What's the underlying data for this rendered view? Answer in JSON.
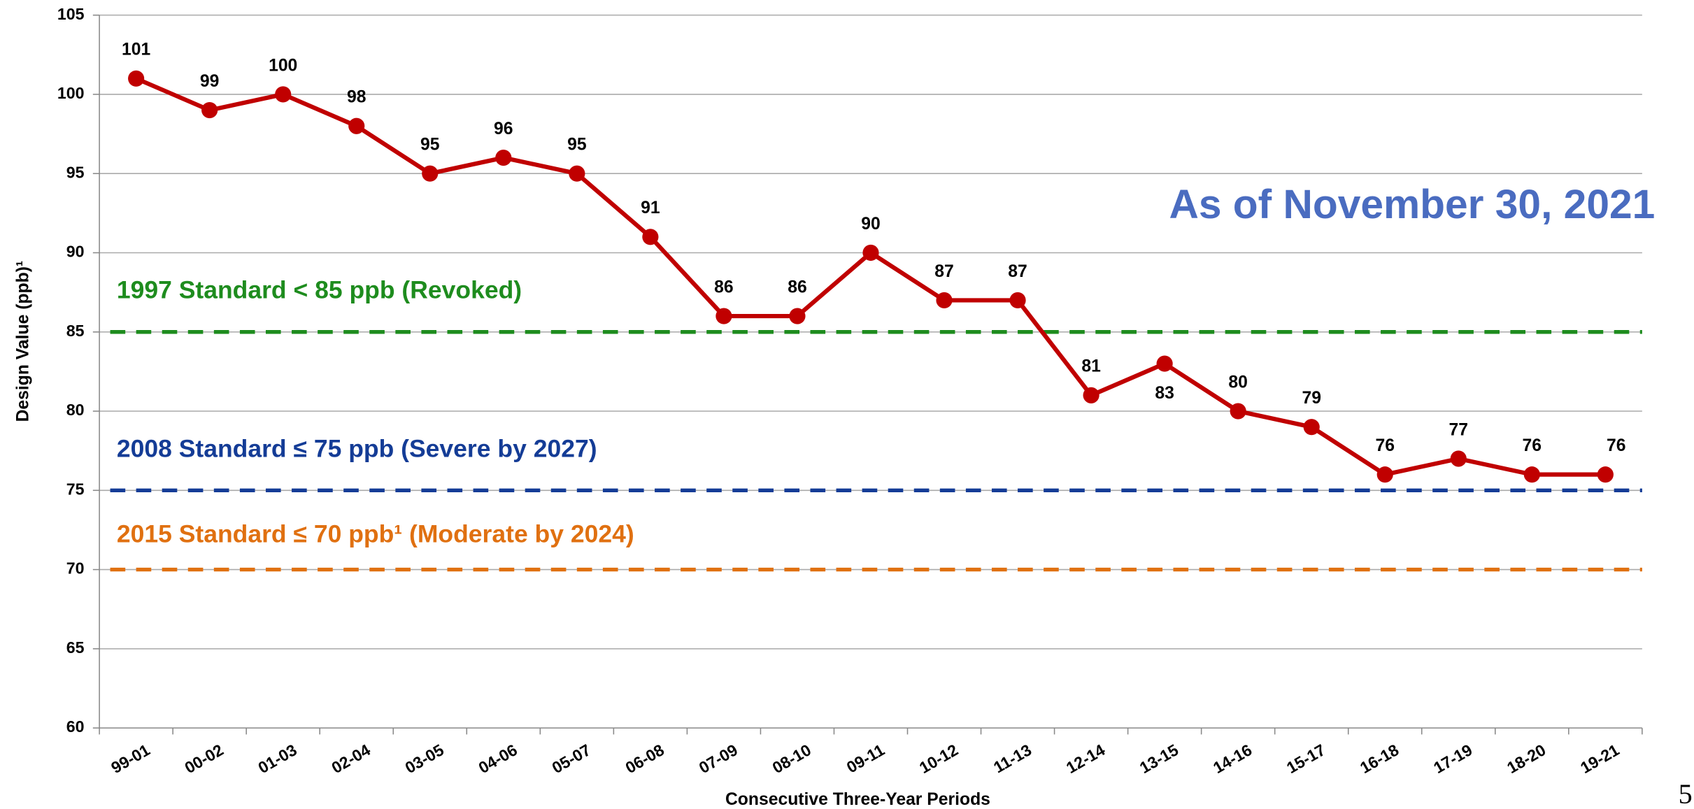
{
  "chart_data": {
    "type": "line",
    "annotation": "As of November 30, 2021",
    "xlabel": "Consecutive Three-Year Periods",
    "ylabel": "Design Value (ppb)¹",
    "page_number": "5",
    "categories": [
      "99-01",
      "00-02",
      "01-03",
      "02-04",
      "03-05",
      "04-06",
      "05-07",
      "06-08",
      "07-09",
      "08-10",
      "09-11",
      "10-12",
      "11-13",
      "12-14",
      "13-15",
      "14-16",
      "15-17",
      "16-18",
      "17-19",
      "18-20",
      "19-21"
    ],
    "series": [
      {
        "color": "#c00000",
        "values": [
          101,
          99,
          100,
          98,
          95,
          96,
          95,
          91,
          86,
          86,
          90,
          87,
          87,
          81,
          83,
          80,
          79,
          76,
          77,
          76,
          76
        ]
      }
    ],
    "reference_lines": [
      {
        "value": 85,
        "label": "1997 Standard < 85 ppb (Revoked)",
        "color": "#1e8c1e"
      },
      {
        "value": 75,
        "label": "2008 Standard ≤ 75 ppb (Severe by 2027)",
        "color": "#143c96"
      },
      {
        "value": 70,
        "label": "2015 Standard ≤ 70 ppb¹ (Moderate by 2024)",
        "color": "#e07010"
      }
    ],
    "ylim": [
      60,
      105
    ],
    "yticks": [
      60,
      65,
      70,
      75,
      80,
      85,
      90,
      95,
      100,
      105
    ],
    "grid": true
  }
}
